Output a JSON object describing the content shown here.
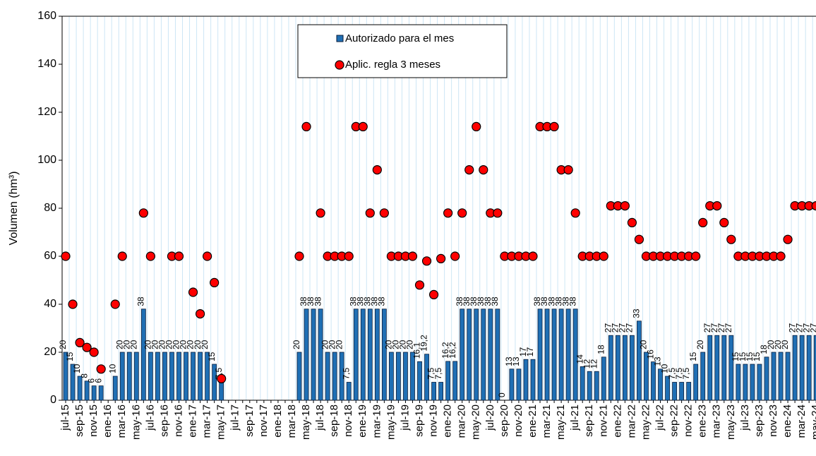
{
  "chart_data": {
    "type": "bar",
    "y_label": "Volumen (hm³)",
    "categories": [
      "jul-15",
      null,
      "sep-15",
      null,
      "nov-15",
      null,
      "ene-16",
      null,
      "mar-16",
      null,
      "may-16",
      null,
      "jul-16",
      null,
      "sep-16",
      null,
      "nov-16",
      null,
      "ene-17",
      null,
      "mar-17",
      null,
      "may-17",
      null,
      "jul-17",
      null,
      "sep-17",
      null,
      "nov-17",
      null,
      "ene-18",
      null,
      "mar-18",
      null,
      "may-18",
      null,
      "jul-18",
      null,
      "sep-18",
      null,
      "nov-18",
      null,
      "ene-19",
      null,
      "mar-19",
      null,
      "may-19",
      null,
      "jul-19",
      null,
      "sep-19",
      null,
      "nov-19",
      null,
      "ene-20",
      null,
      "mar-20",
      null,
      "may-20",
      null,
      "jul-20",
      null,
      "sep-20",
      null,
      "nov-20",
      null,
      "ene-21",
      null,
      "mar-21",
      null,
      "may-21",
      null,
      "jul-21",
      null,
      "sep-21",
      null,
      "nov-21",
      null,
      "ene-22",
      null,
      "mar-22",
      null,
      "may-22",
      null,
      "jul-22",
      null,
      "sep-22",
      null,
      "nov-22",
      null,
      "ene-23",
      null,
      "mar-23",
      null,
      "may-23",
      null,
      "jul-23",
      null,
      "sep-23",
      null,
      "nov-23",
      null,
      "ene-24",
      null,
      "mar-24",
      null,
      "may-24"
    ],
    "series": [
      {
        "name": "Autorizado para el mes",
        "type": "bar",
        "color": "#1f6fb4",
        "values": [
          20,
          15,
          10,
          8,
          6,
          6,
          null,
          10,
          20,
          20,
          20,
          38,
          20,
          20,
          20,
          20,
          20,
          20,
          20,
          20,
          20,
          15,
          7.5,
          null,
          null,
          null,
          null,
          null,
          null,
          null,
          null,
          null,
          null,
          20,
          38,
          38,
          38,
          20,
          20,
          20,
          7.5,
          38,
          38,
          38,
          38,
          38,
          20,
          20,
          20,
          20,
          16.1,
          19.2,
          7.5,
          7.5,
          16.2,
          16.2,
          38,
          38,
          38,
          38,
          38,
          38,
          0,
          13,
          13,
          17,
          17,
          38,
          38,
          38,
          38,
          38,
          38,
          14,
          12,
          12,
          18,
          27,
          27,
          27,
          27,
          33,
          20,
          16,
          13,
          10,
          7.5,
          7.5,
          7.5,
          15,
          20,
          27,
          27,
          27,
          27,
          15,
          15,
          15,
          15,
          18,
          20,
          20,
          20,
          27,
          27,
          27,
          27
        ],
        "value_labels": [
          "20",
          "15",
          "10",
          "8",
          "6",
          "6",
          null,
          "10",
          "20",
          "20",
          "20",
          "38",
          "20",
          "20",
          "20",
          "20",
          "20",
          "20",
          "20",
          "20",
          "20",
          "15",
          "7,5",
          null,
          null,
          null,
          null,
          null,
          null,
          null,
          null,
          null,
          null,
          "20",
          "38",
          "38",
          "38",
          "20",
          "20",
          "20",
          "7,5",
          "38",
          "38",
          "38",
          "38",
          "38",
          "20",
          "20",
          "20",
          "20",
          "16,1",
          "19,2",
          "7,5",
          "7,5",
          "16,2",
          "16,2",
          "38",
          "38",
          "38",
          "38",
          "38",
          "38",
          "0",
          "13",
          "13",
          "17",
          "17",
          "38",
          "38",
          "38",
          "38",
          "38",
          "38",
          "14",
          "12",
          "12",
          "18",
          "27",
          "27",
          "27",
          "27",
          "33",
          "20",
          "16",
          "13",
          "10",
          "7,5",
          "7,5",
          "7,5",
          "15",
          "20",
          "27",
          "27",
          "27",
          "27",
          "15",
          "15",
          "15",
          "15",
          "18",
          "20",
          "20",
          "20",
          "27",
          "27",
          "27",
          "27"
        ]
      },
      {
        "name": "Aplic. regla 3 meses",
        "type": "dot",
        "color": "#ff0000",
        "values": [
          60,
          40,
          24,
          22,
          20,
          13,
          null,
          40,
          60,
          null,
          null,
          78,
          60,
          null,
          null,
          60,
          60,
          null,
          45,
          36,
          60,
          49,
          9,
          null,
          null,
          null,
          null,
          null,
          null,
          null,
          null,
          null,
          null,
          60,
          114,
          null,
          78,
          60,
          60,
          60,
          60,
          114,
          114,
          78,
          96,
          78,
          60,
          60,
          60,
          60,
          48,
          58,
          44,
          59,
          78,
          60,
          78,
          96,
          114,
          96,
          78,
          78,
          60,
          60,
          60,
          60,
          60,
          114,
          114,
          114,
          96,
          96,
          78,
          60,
          60,
          60,
          60,
          81,
          81,
          81,
          74,
          67,
          60,
          60,
          60,
          60,
          60,
          60,
          60,
          60,
          74,
          81,
          81,
          74,
          67,
          60,
          60,
          60,
          60,
          60,
          60,
          60,
          67,
          81,
          81,
          81,
          81
        ]
      }
    ],
    "ylim": [
      0,
      160
    ],
    "yticks": [
      0,
      20,
      40,
      60,
      80,
      100,
      120,
      140,
      160
    ],
    "grid": "x",
    "grid_color": "#cde6f5",
    "legend": "top-center"
  }
}
